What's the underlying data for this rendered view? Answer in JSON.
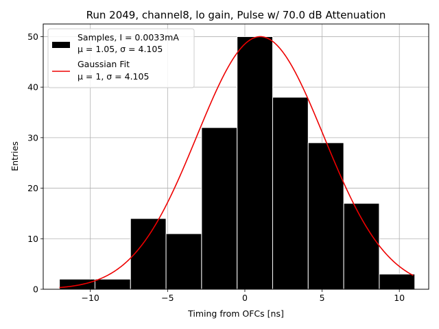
{
  "chart_data": {
    "type": "histogram",
    "title": "Run 2049, channel8, lo gain, Pulse w/ 70.0 dB Attenuation",
    "xlabel": "Timing from OFCs [ns]",
    "ylabel": "Entries",
    "xlim": [
      -13.05,
      11.9
    ],
    "ylim": [
      0,
      52.5
    ],
    "grid": true,
    "xticks": [
      -10,
      -5,
      0,
      5,
      10
    ],
    "xtick_labels": [
      "−10",
      "−5",
      "0",
      "5",
      "10"
    ],
    "yticks": [
      0,
      10,
      20,
      30,
      40,
      50
    ],
    "ytick_labels": [
      "0",
      "10",
      "20",
      "30",
      "40",
      "50"
    ],
    "histogram": {
      "name": "Samples, I = 0.0033mA",
      "stats": "μ = 1.05, σ = 4.105",
      "color": "#000000",
      "bin_edges": [
        -12.0,
        -9.7,
        -7.4,
        -5.1,
        -2.8,
        -0.5,
        1.8,
        4.1,
        6.4,
        8.7,
        11.0
      ],
      "counts": [
        2,
        2,
        14,
        11,
        32,
        50,
        38,
        29,
        17,
        3
      ]
    },
    "fit": {
      "name": "Gaussian Fit",
      "stats": "μ = 1, σ = 4.105",
      "color": "#ee0000",
      "mu": 1.0,
      "sigma": 4.105,
      "amplitude": 50.0,
      "x_range": [
        -12.0,
        10.9
      ]
    },
    "legend_position": "upper-left"
  }
}
